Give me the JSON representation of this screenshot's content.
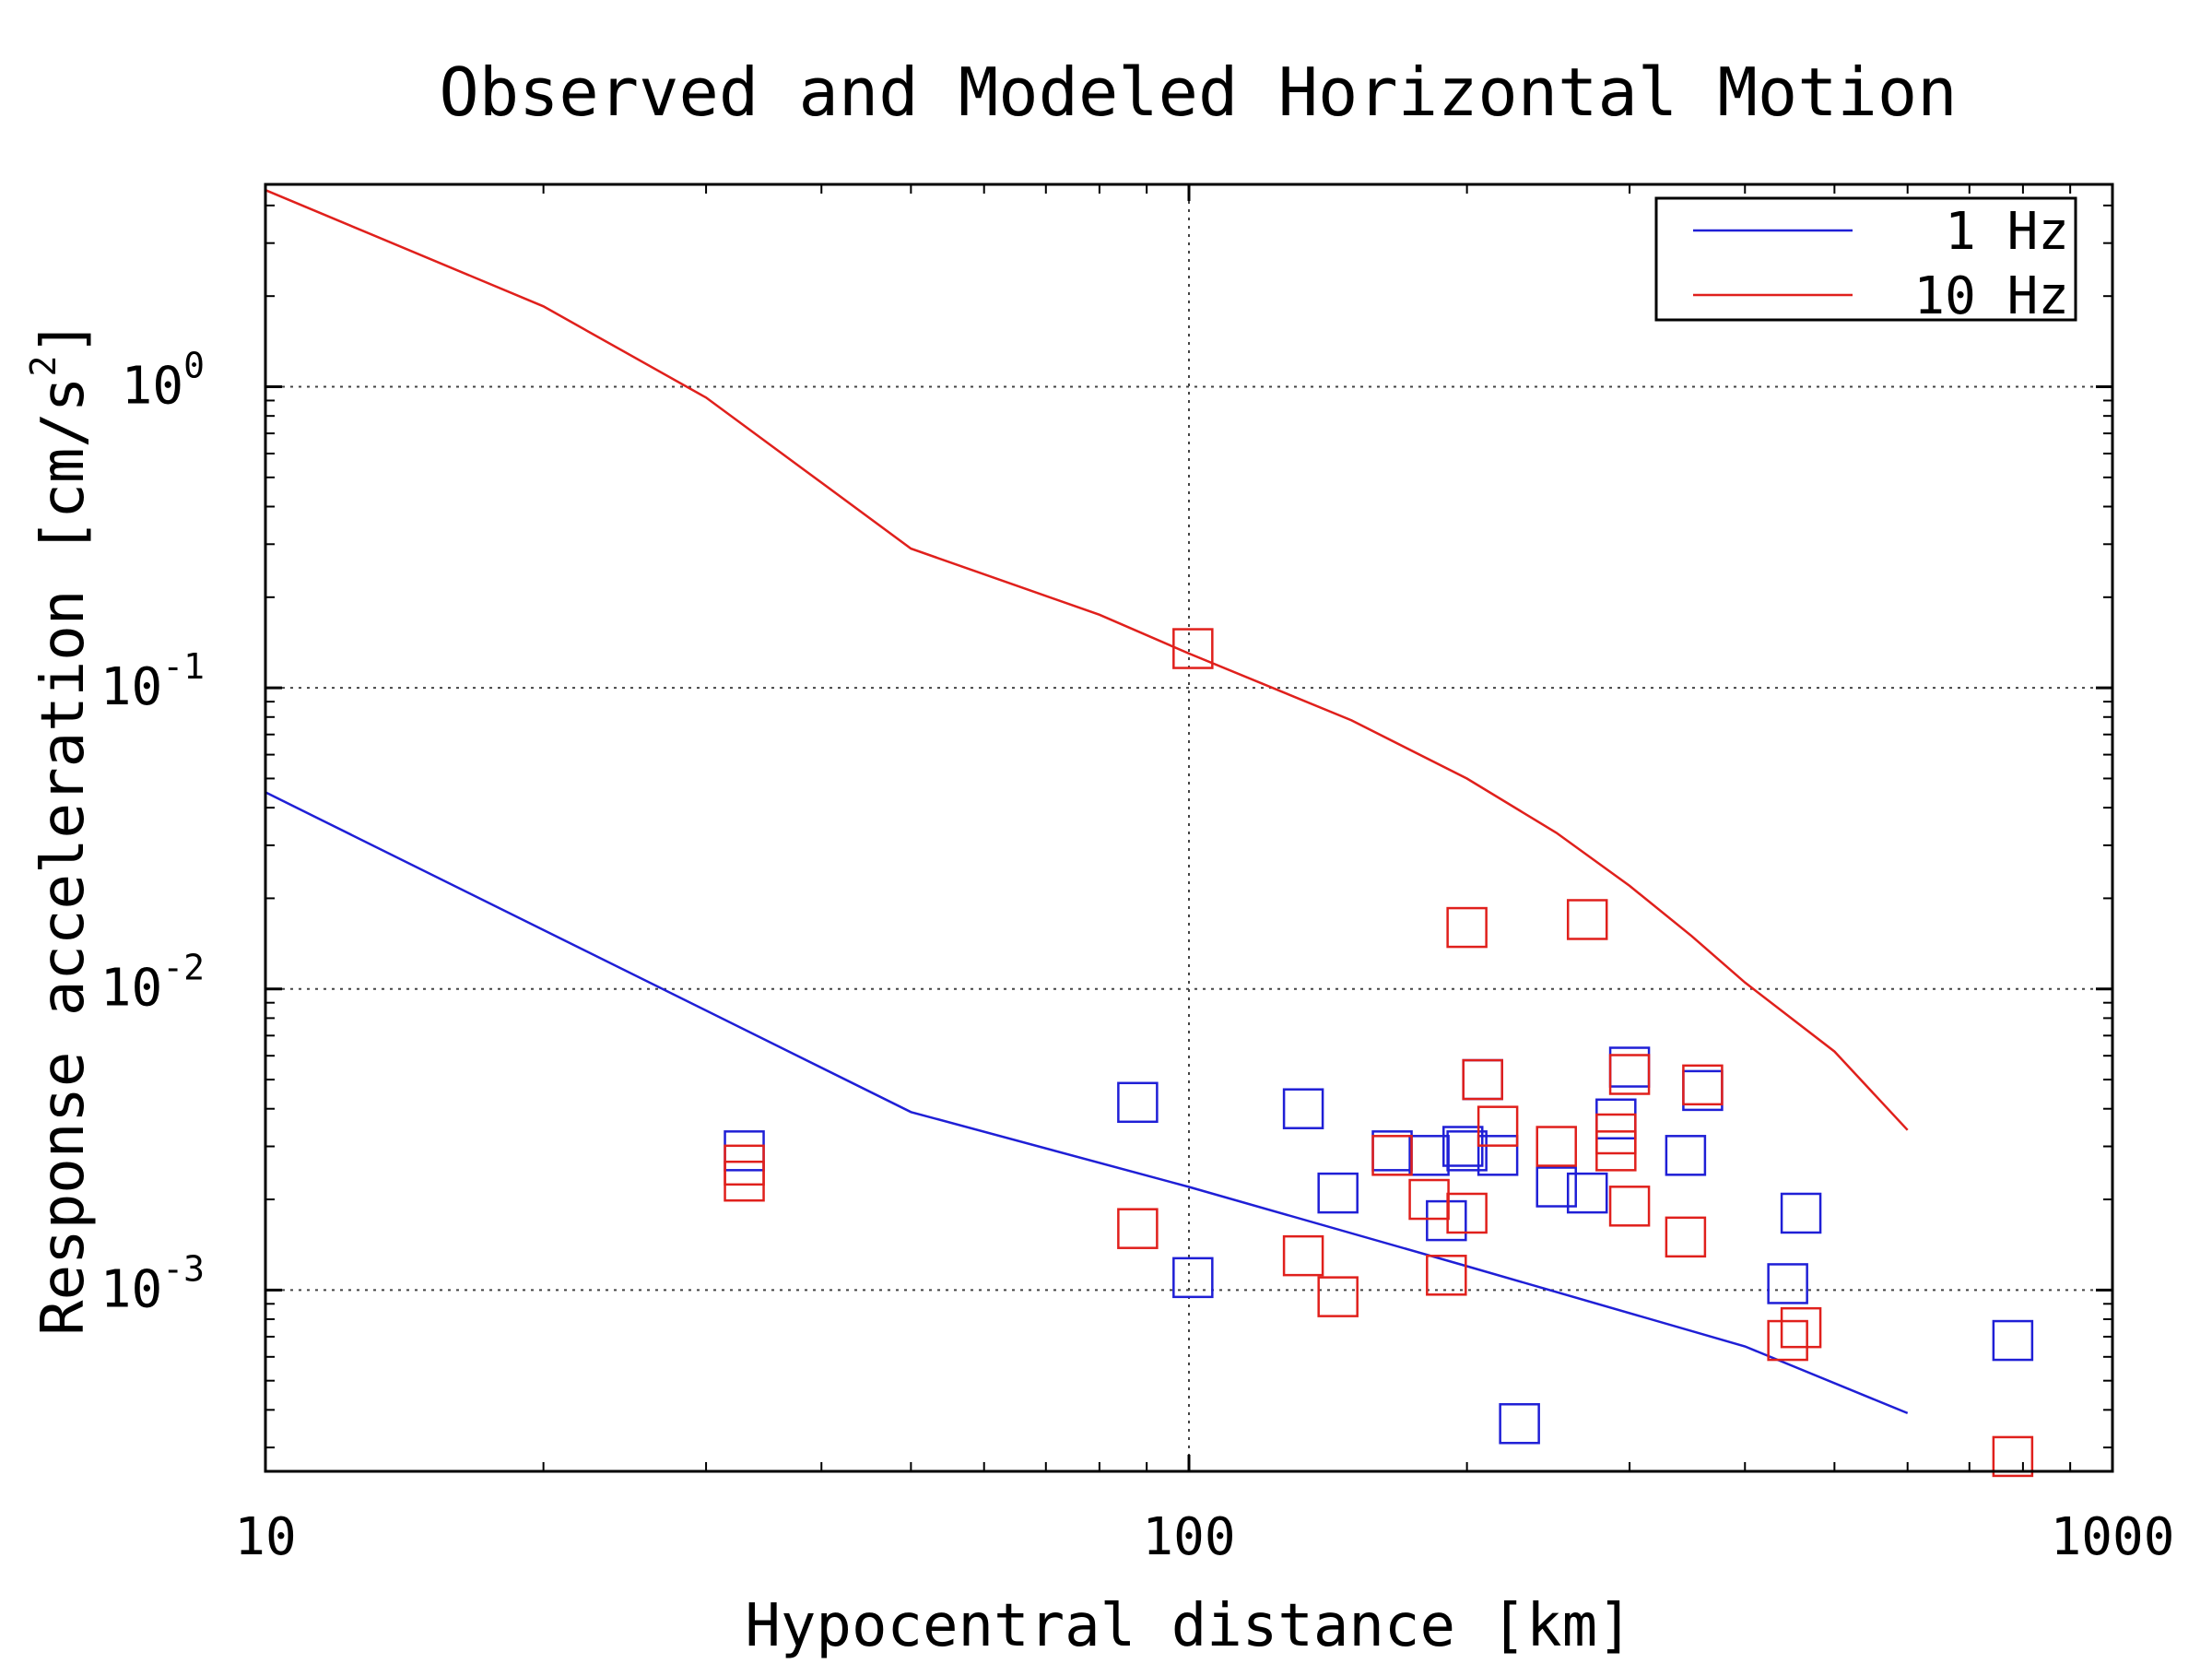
{
  "chart_data": {
    "type": "scatter",
    "title": "Observed and Modeled Horizontal Motion",
    "xlabel": "Hypocentral distance [km]",
    "ylabel": "Response acceleration [cm/s²]",
    "ylabel_base": "Response acceleration [cm/s",
    "ylabel_exp": "2",
    "ylabel_close": "]",
    "x_scale": "log",
    "y_scale": "log",
    "xlim": [
      10,
      1000
    ],
    "ylim": [
      0.00025,
      4.7
    ],
    "grid": true,
    "legend_position": "top-right",
    "x_ticks": [
      {
        "value": 10,
        "label": "10"
      },
      {
        "value": 100,
        "label": "100"
      },
      {
        "value": 1000,
        "label": "1000"
      }
    ],
    "y_ticks": [
      {
        "value": 1,
        "base": "10",
        "exp": "0"
      },
      {
        "value": 0.1,
        "base": "10",
        "exp": "-1"
      },
      {
        "value": 0.01,
        "base": "10",
        "exp": "-2"
      },
      {
        "value": 0.001,
        "base": "10",
        "exp": "-3"
      }
    ],
    "series": [
      {
        "name": "1 Hz",
        "color": "#1f1fd6",
        "model_line": [
          [
            10,
            0.045
          ],
          [
            50,
            0.0039
          ],
          [
            100,
            0.0022
          ],
          [
            200,
            0.0012
          ],
          [
            400,
            0.00065
          ],
          [
            600,
            0.00039
          ]
        ],
        "observed": [
          [
            33,
            0.0029
          ],
          [
            88,
            0.0042
          ],
          [
            101,
            0.0011
          ],
          [
            133,
            0.004
          ],
          [
            145,
            0.0021
          ],
          [
            166,
            0.0029
          ],
          [
            182,
            0.0028
          ],
          [
            190,
            0.0017
          ],
          [
            198,
            0.003
          ],
          [
            200,
            0.0029
          ],
          [
            208,
            0.005
          ],
          [
            216,
            0.0028
          ],
          [
            228,
            0.00036
          ],
          [
            250,
            0.0022
          ],
          [
            270,
            0.0021
          ],
          [
            290,
            0.0037
          ],
          [
            300,
            0.0055
          ],
          [
            345,
            0.0028
          ],
          [
            360,
            0.0046
          ],
          [
            445,
            0.00105
          ],
          [
            460,
            0.0018
          ],
          [
            780,
            0.00068
          ]
        ]
      },
      {
        "name": "10 Hz",
        "color": "#e0201c",
        "model_line": [
          [
            10,
            4.5
          ],
          [
            20,
            1.85
          ],
          [
            30,
            0.92
          ],
          [
            50,
            0.29
          ],
          [
            80,
            0.175
          ],
          [
            100,
            0.13
          ],
          [
            150,
            0.078
          ],
          [
            200,
            0.05
          ],
          [
            250,
            0.033
          ],
          [
            300,
            0.022
          ],
          [
            350,
            0.015
          ],
          [
            400,
            0.0105
          ],
          [
            500,
            0.0062
          ],
          [
            600,
            0.0034
          ]
        ],
        "observed": [
          [
            33,
            0.0023
          ],
          [
            33,
            0.0026
          ],
          [
            88,
            0.0016
          ],
          [
            101,
            0.135
          ],
          [
            133,
            0.0013
          ],
          [
            145,
            0.00095
          ],
          [
            166,
            0.0028
          ],
          [
            182,
            0.002
          ],
          [
            190,
            0.00112
          ],
          [
            200,
            0.0018
          ],
          [
            200,
            0.016
          ],
          [
            208,
            0.005
          ],
          [
            216,
            0.0035
          ],
          [
            250,
            0.003
          ],
          [
            270,
            0.017
          ],
          [
            290,
            0.0029
          ],
          [
            290,
            0.0033
          ],
          [
            300,
            0.0019
          ],
          [
            300,
            0.0052
          ],
          [
            345,
            0.0015
          ],
          [
            360,
            0.0048
          ],
          [
            445,
            0.00068
          ],
          [
            460,
            0.00075
          ],
          [
            780,
            0.00028
          ]
        ]
      }
    ]
  }
}
